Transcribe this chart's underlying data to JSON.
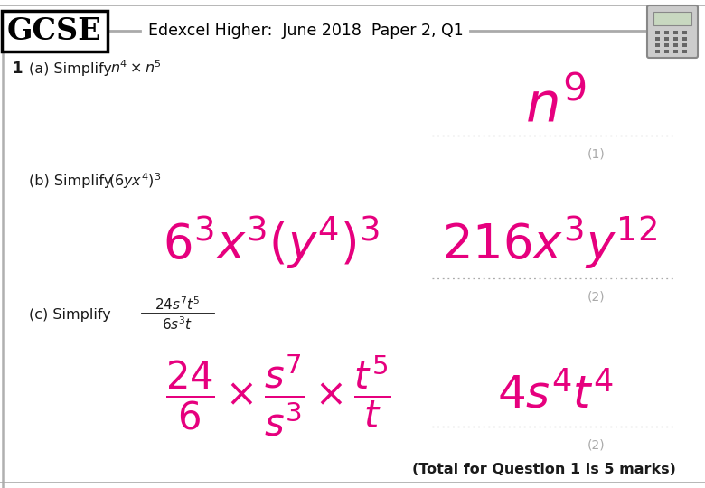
{
  "bg_color": "#ffffff",
  "border_color": "#b0b0b0",
  "pink": "#e6007e",
  "gray": "#aaaaaa",
  "dark": "#1a1a1a",
  "header_line_color": "#aaaaaa",
  "gcse_text": "GCSE",
  "header_text": "Edexcel Higher:  June 2018  Paper 2, Q1",
  "q1_label": "1",
  "qa_text": "(a) Simplify",
  "qa_marks": "(1)",
  "qb_text": "(b) Simplify",
  "qb_marks": "(2)",
  "qc_text": "(c) Simplify",
  "qc_marks": "(2)",
  "total_text": "(Total for Question 1 is 5 marks)"
}
